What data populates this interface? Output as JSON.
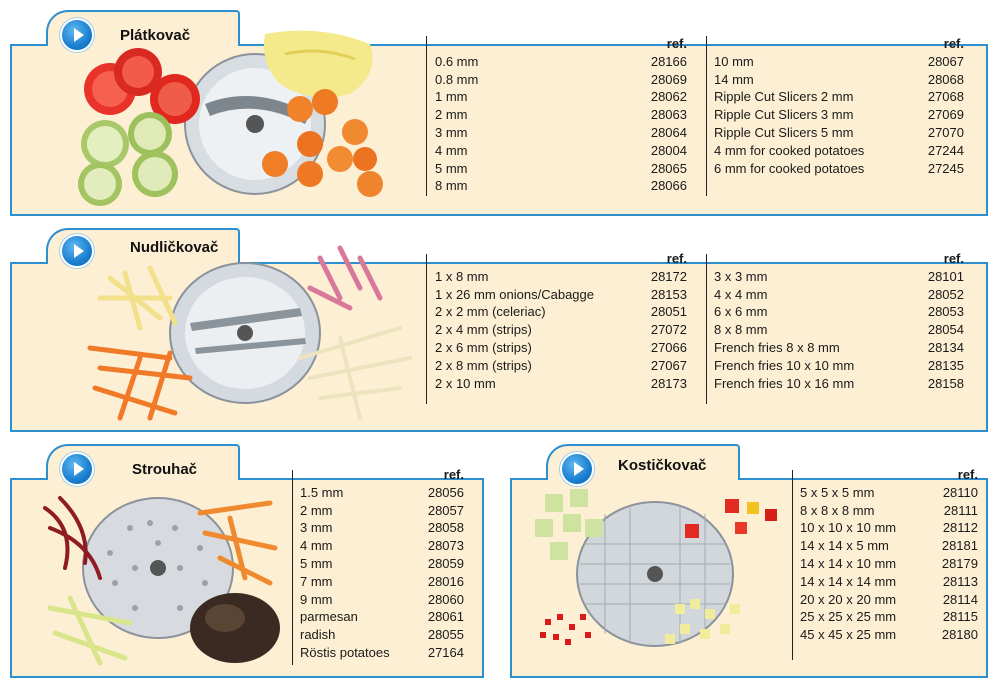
{
  "ref_label": "ref.",
  "sections": {
    "platkovac": {
      "title": "Plátkovač",
      "col1": [
        [
          "0.6 mm",
          "28166"
        ],
        [
          "0.8 mm",
          "28069"
        ],
        [
          "1 mm",
          "28062"
        ],
        [
          "2 mm",
          "28063"
        ],
        [
          "3 mm",
          "28064"
        ],
        [
          "4 mm",
          "28004"
        ],
        [
          "5 mm",
          "28065"
        ],
        [
          "8 mm",
          "28066"
        ]
      ],
      "col2": [
        [
          "10 mm",
          "28067"
        ],
        [
          "14 mm",
          "28068"
        ],
        [
          "Ripple Cut Slicers 2 mm",
          "27068"
        ],
        [
          "Ripple Cut Slicers 3 mm",
          "27069"
        ],
        [
          "Ripple Cut Slicers 5 mm",
          "27070"
        ],
        [
          "4 mm for cooked potatoes",
          "27244"
        ],
        [
          "6 mm for cooked potatoes",
          "27245"
        ]
      ]
    },
    "nudlickovac": {
      "title": "Nudličkovač",
      "col1": [
        [
          "1 x 8 mm",
          "28172"
        ],
        [
          "1 x 26 mm onions/Cabagge",
          "28153"
        ],
        [
          "2 x 2 mm (celeriac)",
          "28051"
        ],
        [
          "2 x 4 mm (strips)",
          "27072"
        ],
        [
          "2 x 6 mm (strips)",
          "27066"
        ],
        [
          "2 x 8 mm (strips)",
          "27067"
        ],
        [
          "2 x 10 mm",
          "28173"
        ]
      ],
      "col2": [
        [
          "3 x 3 mm",
          "28101"
        ],
        [
          "4 x 4 mm",
          "28052"
        ],
        [
          "6 x 6 mm",
          "28053"
        ],
        [
          "8 x 8 mm",
          "28054"
        ],
        [
          "French fries 8 x 8 mm",
          "28134"
        ],
        [
          "French fries 10 x 10 mm",
          "28135"
        ],
        [
          "French fries 10 x 16 mm",
          "28158"
        ]
      ]
    },
    "strouhac": {
      "title": "Strouhač",
      "col1": [
        [
          "1.5 mm",
          "28056"
        ],
        [
          "2 mm",
          "28057"
        ],
        [
          "3 mm",
          "28058"
        ],
        [
          "4 mm",
          "28073"
        ],
        [
          "5 mm",
          "28059"
        ],
        [
          "7 mm",
          "28016"
        ],
        [
          "9 mm",
          "28060"
        ],
        [
          "parmesan",
          "28061"
        ],
        [
          "radish",
          "28055"
        ],
        [
          "Röstis potatoes",
          "27164"
        ]
      ]
    },
    "kostickovac": {
      "title": "Kostičkovač",
      "col1": [
        [
          "5 x 5 x 5 mm",
          "28110"
        ],
        [
          "8 x 8 x 8 mm",
          "28111"
        ],
        [
          "10 x 10 x 10 mm",
          "28112"
        ],
        [
          "14 x 14 x 5 mm",
          "28181"
        ],
        [
          "14 x 14 x 10 mm",
          "28179"
        ],
        [
          "14 x 14 x 14 mm",
          "28113"
        ],
        [
          "20 x 20 x 20 mm",
          "28114"
        ],
        [
          "25 x 25 x 25 mm",
          "28115"
        ],
        [
          "45 x 45 x 25 mm",
          "28180"
        ]
      ]
    }
  },
  "icons": {
    "play": "play-arrow-icon",
    "accent": "#2b8fd0",
    "panel_bg": "#fdefd4"
  }
}
